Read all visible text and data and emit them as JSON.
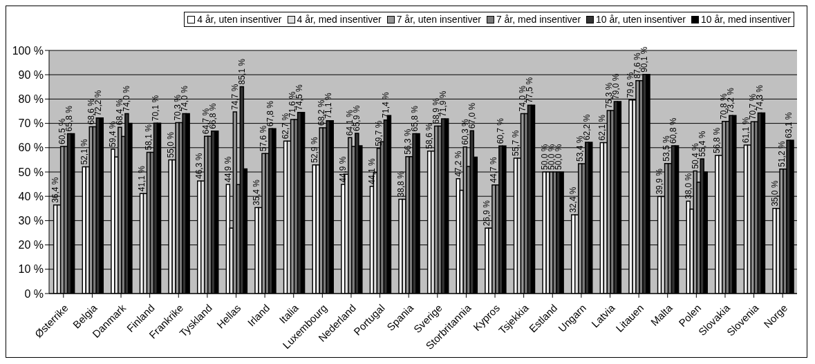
{
  "chart_data": {
    "type": "bar",
    "categories": [
      "Østerrike",
      "Belgia",
      "Danmark",
      "Finland",
      "Frankrike",
      "Tyskland",
      "Hellas",
      "Irland",
      "Italia",
      "Luxembourg",
      "Nederland",
      "Portugal",
      "Spania",
      "Sverige",
      "Storbritannia",
      "Kypros",
      "Tsjekkia",
      "Estland",
      "Ungarn",
      "Latvia",
      "Litauen",
      "Malta",
      "Polen",
      "Slovakia",
      "Slovenia",
      "Norge"
    ],
    "series": [
      {
        "name": "4 år, uten insentiver",
        "color": "#ffffff",
        "values": [
          36.4,
          52.1,
          59.4,
          41.1,
          55.0,
          46.3,
          44.9,
          35.4,
          62.7,
          52.9,
          44.9,
          44.1,
          38.8,
          58.6,
          47.2,
          26.9,
          55.7,
          50.0,
          32.4,
          62.1,
          79.6,
          39.9,
          38.0,
          56.8,
          61.1,
          35.0
        ],
        "value_labels": [
          "36,4 %",
          "52,1 %",
          "59,4 %",
          "41,1 %",
          "55,0 %",
          "46,3 %",
          "44,9 %",
          "35,4 %",
          "62,7 %",
          "52,9 %",
          "44,9 %",
          "44,1 %",
          "38,8 %",
          "58,6 %",
          "47,2 %",
          "26,9 %",
          "55,7 %",
          "50,0 %",
          "32,4 %",
          "62,1 %",
          "79,6 %",
          "39,9 %",
          "38,0 %",
          "56,8 %",
          "61,1 %",
          "35,0 %"
        ]
      },
      {
        "name": "4 år, med insentiver",
        "color": "#e0e0e0",
        "values": [
          36.4,
          52.1,
          56.2,
          41.1,
          55.0,
          46.3,
          26.9,
          35.4,
          62.7,
          52.9,
          49.1,
          49.8,
          38.8,
          58.6,
          42.5,
          26.9,
          55.7,
          50.0,
          32.4,
          62.1,
          79.6,
          39.9,
          34.7,
          56.8,
          61.1,
          35.0
        ]
      },
      {
        "name": "7 år, uten insentiver",
        "color": "#969696",
        "values": [
          60.5,
          68.6,
          68.4,
          58.1,
          70.3,
          64.7,
          74.7,
          57.6,
          71.6,
          68.2,
          64.1,
          59.7,
          56.3,
          68.9,
          60.3,
          44.7,
          74.0,
          50.0,
          53.4,
          75.3,
          87.6,
          53.5,
          50.4,
          70.8,
          70.7,
          51.2
        ],
        "value_labels": [
          "60,5 %",
          "68,6 %",
          "68,4 %",
          "58,1 %",
          "70,3 %",
          "64,7 %",
          "74,7 %",
          "57,6 %",
          "71,6 %",
          "68,2 %",
          "64,1 %",
          "59,7 %",
          "56,3 %",
          "68,9 %",
          "60,3 %",
          "44,7 %",
          "74,0 %",
          "50,0 %",
          "53,4 %",
          "75,3 %",
          "87,6 %",
          "53,5 %",
          "50,4 %",
          "70,8 %",
          "70,7 %",
          "51,2 %"
        ]
      },
      {
        "name": "7 år, med insentiver",
        "color": "#7a7a7a",
        "values": [
          60.5,
          68.6,
          64.6,
          58.1,
          70.3,
          64.7,
          44.8,
          57.6,
          71.6,
          68.2,
          60.5,
          62.4,
          56.3,
          68.9,
          52.3,
          44.7,
          74.0,
          50.0,
          53.4,
          75.3,
          87.6,
          53.5,
          45.8,
          70.8,
          70.7,
          51.2
        ]
      },
      {
        "name": "10 år, uten insentiver",
        "color": "#333333",
        "values": [
          65.8,
          72.2,
          74.0,
          70.1,
          74.0,
          66.8,
          85.1,
          67.8,
          74.5,
          71.1,
          65.9,
          71.4,
          65.8,
          71.9,
          67.0,
          60.7,
          77.5,
          50.0,
          62.2,
          79.0,
          90.1,
          60.8,
          55.4,
          73.2,
          74.3,
          63.1
        ],
        "value_labels": [
          "65,8 %",
          "72,2 %",
          "74,0 %",
          "70,1 %",
          "74,0 %",
          "66,8 %",
          "85,1 %",
          "67,8 %",
          "74,5 %",
          "71,1 %",
          "65,9 %",
          "71,4 %",
          "65,8 %",
          "71,9 %",
          "67,0 %",
          "60,7 %",
          "77,5 %",
          "50,0 %",
          "62,2 %",
          "79,0 %",
          "90,1 %",
          "60,8 %",
          "55,4 %",
          "73,2 %",
          "74,3 %",
          "63,1 %"
        ]
      },
      {
        "name": "10 år, med insentiver",
        "color": "#000000",
        "values": [
          65.8,
          72.2,
          70.0,
          70.1,
          74.0,
          66.8,
          51.3,
          67.8,
          74.5,
          71.1,
          60.8,
          73.2,
          65.8,
          71.9,
          56.1,
          60.7,
          77.5,
          50.0,
          62.2,
          79.0,
          90.1,
          60.8,
          50.0,
          73.2,
          74.3,
          63.1
        ]
      }
    ],
    "ylim": [
      0,
      100
    ],
    "yticks": [
      {
        "value": 0,
        "label": "0 %"
      },
      {
        "value": 10,
        "label": "10 %"
      },
      {
        "value": 20,
        "label": "20 %"
      },
      {
        "value": 30,
        "label": "30 %"
      },
      {
        "value": 40,
        "label": "40 %"
      },
      {
        "value": 50,
        "label": "50 %"
      },
      {
        "value": 60,
        "label": "60 %"
      },
      {
        "value": 70,
        "label": "70 %"
      },
      {
        "value": 80,
        "label": "80 %"
      },
      {
        "value": 90,
        "label": "90 %"
      },
      {
        "value": 100,
        "label": "100 %"
      }
    ],
    "grid": "y",
    "legend": "top right"
  }
}
